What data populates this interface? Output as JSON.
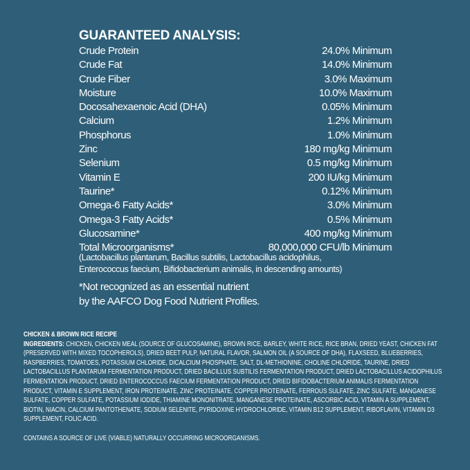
{
  "analysis": {
    "title": "GUARANTEED ANALYSIS:",
    "rows": [
      {
        "label": "Crude Protein",
        "value": "24.0% Minimum"
      },
      {
        "label": "Crude Fat",
        "value": "14.0% Minimum"
      },
      {
        "label": "Crude Fiber",
        "value": "3.0% Maximum"
      },
      {
        "label": "Moisture",
        "value": "10.0% Maximum"
      },
      {
        "label": "Docosahexaenoic Acid (DHA)",
        "value": "0.05% Minimum"
      },
      {
        "label": "Calcium",
        "value": "1.2% Minimum"
      },
      {
        "label": "Phosphorus",
        "value": "1.0% Minimum"
      },
      {
        "label": "Zinc",
        "value": "180 mg/kg Minimum"
      },
      {
        "label": "Selenium",
        "value": "0.5 mg/kg Minimum"
      },
      {
        "label": "Vitamin E",
        "value": "200 IU/kg Minimum"
      },
      {
        "label": "Taurine*",
        "value": "0.12% Minimum"
      },
      {
        "label": "Omega-6 Fatty Acids*",
        "value": "3.0% Minimum"
      },
      {
        "label": "Omega-3 Fatty Acids*",
        "value": "0.5% Minimum"
      },
      {
        "label": "Glucosamine*",
        "value": "400 mg/kg Minimum"
      },
      {
        "label": "Total Microorganisms*",
        "value": "80,000,000 CFU/lb Minimum"
      }
    ],
    "note_lines": [
      "(Lactobacillus plantarum, Bacillus subtilis, Lactobacillus acidophilus,",
      "Enterococcus faecium, Bifidobacterium animalis, in descending amounts)"
    ],
    "footnote_lines": [
      "*Not recognized as an essential nutrient",
      "by the AAFCO Dog Food Nutrient Profiles."
    ]
  },
  "ingredients": {
    "recipe": "CHICKEN & BROWN RICE RECIPE",
    "label": "INGREDIENTS:",
    "first_line": " CHICKEN, CHICKEN MEAL (SOURCE OF GLUCOSAMINE), BROWN RICE, BARLEY, WHITE RICE, RICE BRAN, DRIED YEAST, CHICKEN FAT",
    "lines": [
      "(PRESERVED WITH MIXED TOCOPHEROLS), DRIED BEET PULP, NATURAL FLAVOR, SALMON OIL (A SOURCE OF DHA), FLAXSEED, BLUEBERRIES,",
      "RASPBERRIES, TOMATOES, POTASSIUM CHLORIDE, DICALCIUM PHOSPHATE, SALT, DL-METHIONINE, CHOLINE CHLORIDE, TAURINE, DRIED",
      "LACTOBACILLUS PLANTARUM FERMENTATION PRODUCT, DRIED BACILLUS SUBTILIS FERMENTATION PRODUCT, DRIED LACTOBACILLUS ACIDOPHILUS",
      "FERMENTATION PRODUCT, DRIED ENTEROCOCCUS FAECIUM FERMENTATION PRODUCT, DRIED BIFIDOBACTERIUM ANIMALIS FERMENTATION",
      "PRODUCT, VITAMIN E SUPPLEMENT, IRON PROTEINATE, ZINC PROTEINATE, COPPER PROTEINATE, FERROUS SULFATE, ZINC SULFATE, MANGANESE",
      "SULFATE, COPPER SULFATE, POTASSIUM IODIDE, THIAMINE MONONITRATE, MANGANESE PROTEINATE, ASCORBIC ACID, VITAMIN A SUPPLEMENT,",
      "BIOTIN, NIACIN, CALCIUM PANTOTHENATE, SODIUM SELENITE, PYRIDOXINE HYDROCHLORIDE, VITAMIN B12 SUPPLEMENT, RIBOFLAVIN, VITAMIN D3",
      "SUPPLEMENT, FOLIC ACID."
    ],
    "contains": "CONTAINS A SOURCE OF LIVE (VIABLE) NATURALLY OCCURRING MICROORGANISMS."
  },
  "colors": {
    "background": "#2f5f78",
    "text": "#ffffff"
  }
}
